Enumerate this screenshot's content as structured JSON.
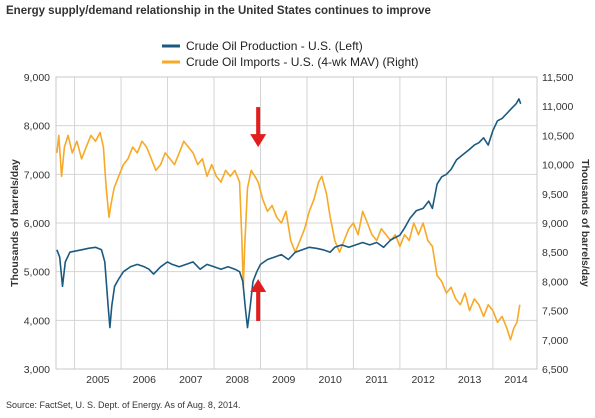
{
  "page": {
    "title": "Energy supply/demand relationship in the United States continues to improve",
    "source": "Source: FactSet, U. S. Dept. of Energy. As of Aug. 8, 2014."
  },
  "colors": {
    "production": "#1b5a80",
    "imports": "#f7a928",
    "arrow": "#e11d1d",
    "grid": "#d4d4d4",
    "frame": "#c8c8c8"
  },
  "chart_data": {
    "type": "line",
    "grid": true,
    "legend_placement": "top-center",
    "xlim": [
      2004.6,
      2014.95
    ],
    "x_ticks": [
      "2005",
      "2006",
      "2007",
      "2008",
      "2009",
      "2010",
      "2011",
      "2012",
      "2013",
      "2014"
    ],
    "y_left": {
      "label": "Thousands of barrels/day",
      "range": [
        3000,
        9000
      ],
      "ticks": [
        "3,000",
        "4,000",
        "5,000",
        "6,000",
        "7,000",
        "8,000",
        "9,000"
      ]
    },
    "y_right": {
      "label": "Thousands of barrels/day",
      "range": [
        6500,
        11500
      ],
      "ticks": [
        "6,500",
        "7,000",
        "7,500",
        "8,000",
        "8,500",
        "9,000",
        "9,500",
        "10,000",
        "10,500",
        "11,000",
        "11,500"
      ]
    },
    "series": [
      {
        "name": "Crude Oil Production - U.S.  (Left)",
        "axis": "left",
        "color": "#1b5a80",
        "points": [
          [
            2004.62,
            5450
          ],
          [
            2004.68,
            5300
          ],
          [
            2004.74,
            4700
          ],
          [
            2004.8,
            5200
          ],
          [
            2004.9,
            5400
          ],
          [
            2005.0,
            5420
          ],
          [
            2005.15,
            5450
          ],
          [
            2005.3,
            5480
          ],
          [
            2005.45,
            5500
          ],
          [
            2005.58,
            5450
          ],
          [
            2005.65,
            5200
          ],
          [
            2005.72,
            4300
          ],
          [
            2005.76,
            3850
          ],
          [
            2005.8,
            4300
          ],
          [
            2005.86,
            4700
          ],
          [
            2005.95,
            4850
          ],
          [
            2006.05,
            5000
          ],
          [
            2006.2,
            5100
          ],
          [
            2006.35,
            5150
          ],
          [
            2006.5,
            5100
          ],
          [
            2006.6,
            5050
          ],
          [
            2006.7,
            4950
          ],
          [
            2006.85,
            5100
          ],
          [
            2007.0,
            5200
          ],
          [
            2007.1,
            5150
          ],
          [
            2007.25,
            5100
          ],
          [
            2007.4,
            5150
          ],
          [
            2007.55,
            5200
          ],
          [
            2007.7,
            5050
          ],
          [
            2007.85,
            5150
          ],
          [
            2008.0,
            5100
          ],
          [
            2008.15,
            5050
          ],
          [
            2008.3,
            5100
          ],
          [
            2008.45,
            5050
          ],
          [
            2008.55,
            5000
          ],
          [
            2008.62,
            4800
          ],
          [
            2008.68,
            4200
          ],
          [
            2008.72,
            3850
          ],
          [
            2008.78,
            4300
          ],
          [
            2008.84,
            4800
          ],
          [
            2008.92,
            5000
          ],
          [
            2009.0,
            5150
          ],
          [
            2009.15,
            5250
          ],
          [
            2009.3,
            5300
          ],
          [
            2009.45,
            5350
          ],
          [
            2009.6,
            5250
          ],
          [
            2009.75,
            5400
          ],
          [
            2009.9,
            5450
          ],
          [
            2010.05,
            5500
          ],
          [
            2010.2,
            5480
          ],
          [
            2010.35,
            5450
          ],
          [
            2010.5,
            5400
          ],
          [
            2010.6,
            5500
          ],
          [
            2010.75,
            5550
          ],
          [
            2010.9,
            5500
          ],
          [
            2011.05,
            5550
          ],
          [
            2011.2,
            5600
          ],
          [
            2011.35,
            5550
          ],
          [
            2011.5,
            5600
          ],
          [
            2011.65,
            5500
          ],
          [
            2011.8,
            5650
          ],
          [
            2011.9,
            5700
          ],
          [
            2012.0,
            5750
          ],
          [
            2012.1,
            5900
          ],
          [
            2012.22,
            6100
          ],
          [
            2012.35,
            6250
          ],
          [
            2012.5,
            6300
          ],
          [
            2012.62,
            6450
          ],
          [
            2012.7,
            6300
          ],
          [
            2012.8,
            6800
          ],
          [
            2012.9,
            6950
          ],
          [
            2013.0,
            7000
          ],
          [
            2013.1,
            7100
          ],
          [
            2013.22,
            7300
          ],
          [
            2013.35,
            7400
          ],
          [
            2013.48,
            7500
          ],
          [
            2013.6,
            7600
          ],
          [
            2013.7,
            7650
          ],
          [
            2013.8,
            7750
          ],
          [
            2013.9,
            7600
          ],
          [
            2014.0,
            7900
          ],
          [
            2014.1,
            8100
          ],
          [
            2014.2,
            8150
          ],
          [
            2014.3,
            8250
          ],
          [
            2014.4,
            8350
          ],
          [
            2014.5,
            8450
          ],
          [
            2014.56,
            8550
          ],
          [
            2014.6,
            8450
          ]
        ]
      },
      {
        "name": "Crude Oil Imports - U.S. (4-wk MAV)  (Right)",
        "axis": "right",
        "color": "#f7a928",
        "points": [
          [
            2004.62,
            10200
          ],
          [
            2004.66,
            10500
          ],
          [
            2004.72,
            9800
          ],
          [
            2004.78,
            10300
          ],
          [
            2004.86,
            10500
          ],
          [
            2004.95,
            10200
          ],
          [
            2005.05,
            10400
          ],
          [
            2005.15,
            10100
          ],
          [
            2005.25,
            10300
          ],
          [
            2005.35,
            10500
          ],
          [
            2005.45,
            10400
          ],
          [
            2005.55,
            10550
          ],
          [
            2005.62,
            10300
          ],
          [
            2005.68,
            9600
          ],
          [
            2005.74,
            9100
          ],
          [
            2005.78,
            9300
          ],
          [
            2005.85,
            9600
          ],
          [
            2005.95,
            9800
          ],
          [
            2006.05,
            10000
          ],
          [
            2006.15,
            10100
          ],
          [
            2006.25,
            10300
          ],
          [
            2006.35,
            10200
          ],
          [
            2006.45,
            10400
          ],
          [
            2006.55,
            10300
          ],
          [
            2006.65,
            10100
          ],
          [
            2006.75,
            9900
          ],
          [
            2006.85,
            10000
          ],
          [
            2006.95,
            10200
          ],
          [
            2007.05,
            10100
          ],
          [
            2007.15,
            10000
          ],
          [
            2007.25,
            10200
          ],
          [
            2007.35,
            10400
          ],
          [
            2007.45,
            10300
          ],
          [
            2007.55,
            10200
          ],
          [
            2007.65,
            10000
          ],
          [
            2007.75,
            10100
          ],
          [
            2007.85,
            9800
          ],
          [
            2007.95,
            10000
          ],
          [
            2008.05,
            9800
          ],
          [
            2008.15,
            9700
          ],
          [
            2008.25,
            9900
          ],
          [
            2008.35,
            9800
          ],
          [
            2008.45,
            9900
          ],
          [
            2008.55,
            9700
          ],
          [
            2008.6,
            8700
          ],
          [
            2008.63,
            7900
          ],
          [
            2008.66,
            8600
          ],
          [
            2008.72,
            9600
          ],
          [
            2008.8,
            9900
          ],
          [
            2008.88,
            9800
          ],
          [
            2008.95,
            9700
          ],
          [
            2009.05,
            9400
          ],
          [
            2009.15,
            9200
          ],
          [
            2009.25,
            9300
          ],
          [
            2009.35,
            9100
          ],
          [
            2009.45,
            9000
          ],
          [
            2009.55,
            9200
          ],
          [
            2009.65,
            8700
          ],
          [
            2009.75,
            8500
          ],
          [
            2009.85,
            8700
          ],
          [
            2009.95,
            8900
          ],
          [
            2010.05,
            9200
          ],
          [
            2010.15,
            9400
          ],
          [
            2010.25,
            9700
          ],
          [
            2010.32,
            9800
          ],
          [
            2010.42,
            9500
          ],
          [
            2010.5,
            9100
          ],
          [
            2010.6,
            8700
          ],
          [
            2010.7,
            8500
          ],
          [
            2010.8,
            8700
          ],
          [
            2010.9,
            8900
          ],
          [
            2011.0,
            9000
          ],
          [
            2011.1,
            8800
          ],
          [
            2011.2,
            9200
          ],
          [
            2011.3,
            9000
          ],
          [
            2011.4,
            8800
          ],
          [
            2011.5,
            8700
          ],
          [
            2011.6,
            8900
          ],
          [
            2011.7,
            8800
          ],
          [
            2011.8,
            8700
          ],
          [
            2011.9,
            8800
          ],
          [
            2012.0,
            8600
          ],
          [
            2012.1,
            8800
          ],
          [
            2012.2,
            8700
          ],
          [
            2012.3,
            9000
          ],
          [
            2012.4,
            8800
          ],
          [
            2012.5,
            9000
          ],
          [
            2012.6,
            8700
          ],
          [
            2012.7,
            8600
          ],
          [
            2012.8,
            8100
          ],
          [
            2012.9,
            8000
          ],
          [
            2013.0,
            7800
          ],
          [
            2013.1,
            7900
          ],
          [
            2013.2,
            7700
          ],
          [
            2013.3,
            7600
          ],
          [
            2013.4,
            7800
          ],
          [
            2013.5,
            7500
          ],
          [
            2013.6,
            7700
          ],
          [
            2013.7,
            7600
          ],
          [
            2013.8,
            7400
          ],
          [
            2013.9,
            7600
          ],
          [
            2014.0,
            7500
          ],
          [
            2014.1,
            7300
          ],
          [
            2014.2,
            7400
          ],
          [
            2014.3,
            7200
          ],
          [
            2014.38,
            7000
          ],
          [
            2014.45,
            7200
          ],
          [
            2014.52,
            7300
          ],
          [
            2014.58,
            7600
          ]
        ]
      }
    ],
    "annotations": [
      {
        "type": "arrow",
        "direction": "down",
        "x": 2008.95,
        "y_right": 10300,
        "color": "#e11d1d"
      },
      {
        "type": "arrow",
        "direction": "up",
        "x": 2008.95,
        "y_left": 4850,
        "color": "#e11d1d"
      }
    ]
  }
}
